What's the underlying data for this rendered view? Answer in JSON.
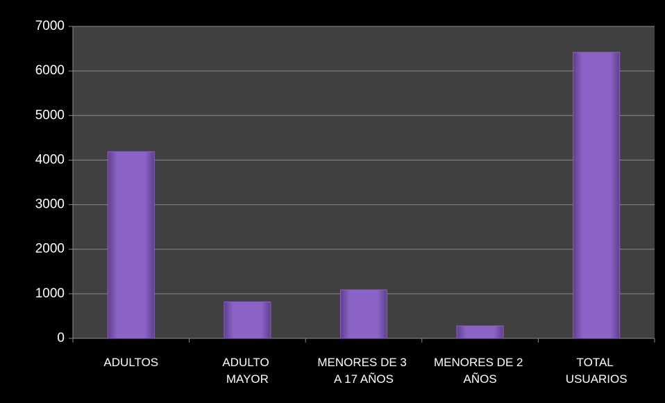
{
  "chart_data": {
    "type": "bar",
    "categories": [
      "ADULTOS",
      "ADULTO MAYOR",
      "MENORES DE 3 A 17 AÑOS",
      "MENORES DE 2 AÑOS",
      "TOTAL USUARIOS"
    ],
    "values": [
      4190,
      820,
      1090,
      280,
      6420
    ],
    "color": "#8a62c4",
    "ylim": [
      0,
      7000
    ],
    "yticks": [
      0,
      1000,
      2000,
      3000,
      4000,
      5000,
      6000,
      7000
    ],
    "grid": true
  }
}
